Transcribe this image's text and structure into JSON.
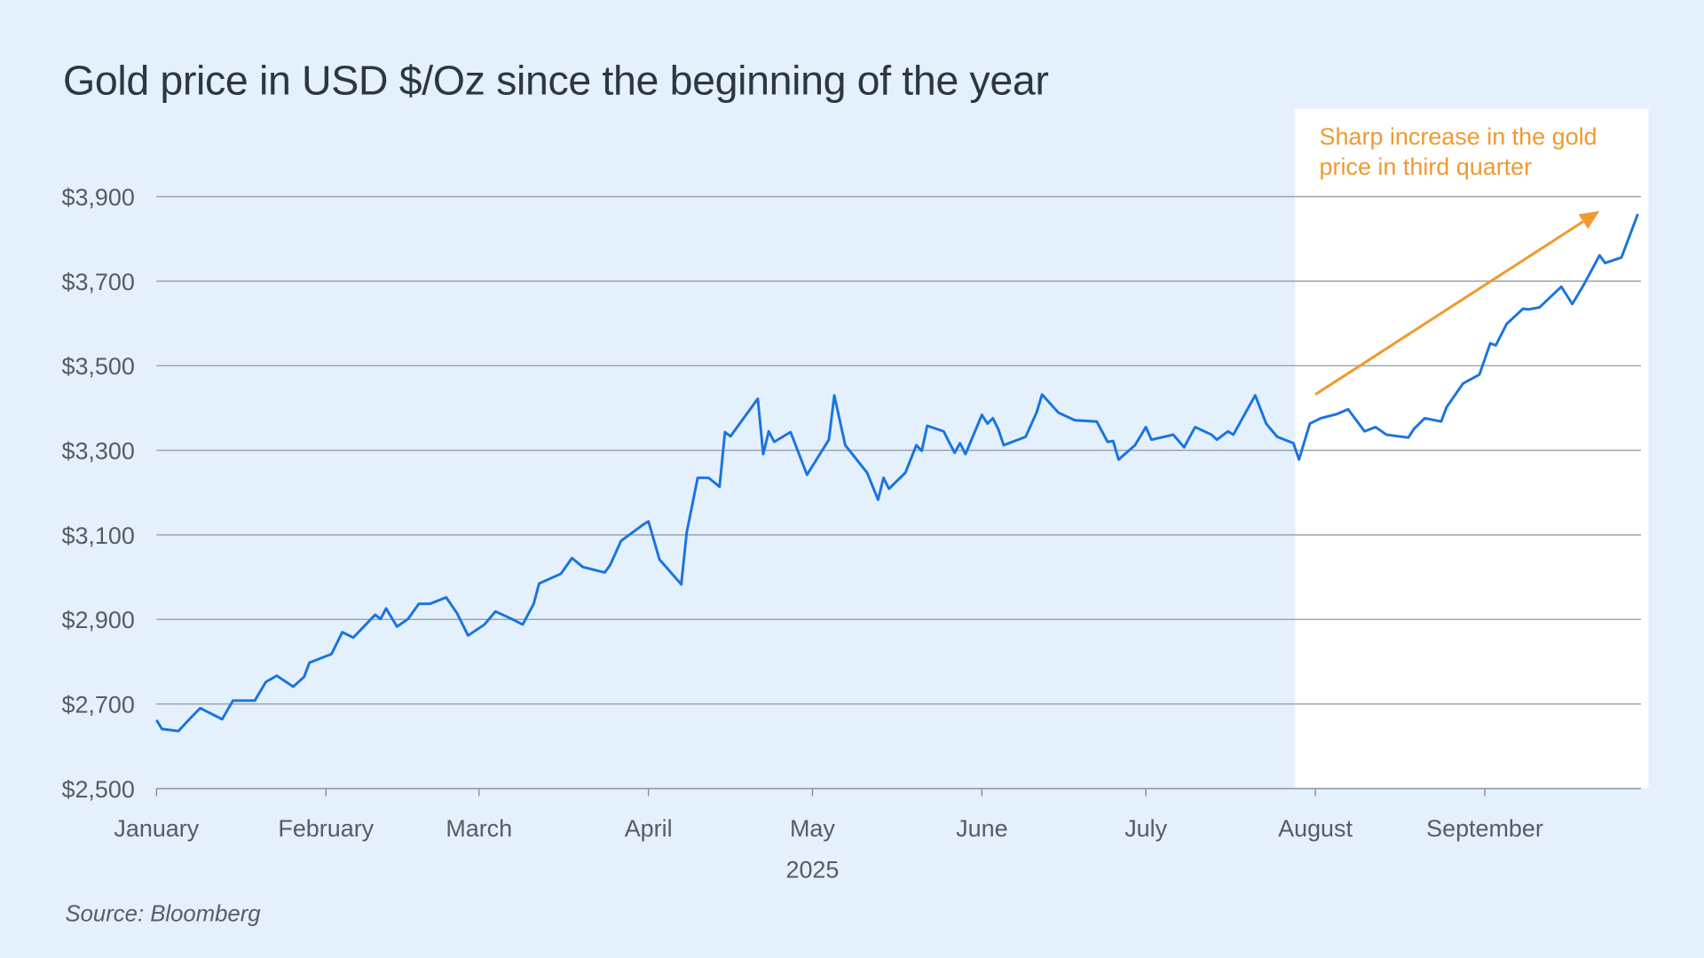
{
  "chart_data": {
    "type": "line",
    "title": "Gold price in USD $/Oz since the beginning of the year",
    "xlabel": "2025",
    "ylabel": "",
    "source": "Source: Bloomberg",
    "ylim": [
      2500,
      3900
    ],
    "xlim_day_of_year": [
      0,
      272
    ],
    "y_ticks": [
      2500,
      2700,
      2900,
      3100,
      3300,
      3500,
      3700,
      3900
    ],
    "y_tick_labels": [
      "$2,500",
      "$2,700",
      "$2,900",
      "$3,100",
      "$3,300",
      "$3,500",
      "$3,700",
      "$3,900"
    ],
    "x_ticks_day": [
      0,
      31,
      59,
      90,
      120,
      151,
      181,
      212,
      243
    ],
    "x_tick_labels": [
      "January",
      "February",
      "March",
      "April",
      "May",
      "June",
      "July",
      "August",
      "September"
    ],
    "grid": "horizontal",
    "series": [
      {
        "name": "Gold price",
        "color": "#1a73e0",
        "x_day": [
          0,
          1,
          4,
          6,
          8,
          12,
          14,
          18,
          20,
          22,
          25,
          27,
          28,
          32,
          34,
          36,
          40,
          41,
          42,
          44,
          46,
          48,
          50,
          53,
          55,
          57,
          60,
          62,
          65,
          67,
          69,
          70,
          74,
          76,
          78,
          82,
          83,
          85,
          89,
          90,
          92,
          96,
          97,
          99,
          101,
          103,
          104,
          105,
          110,
          111,
          112,
          113,
          116,
          119,
          123,
          124,
          126,
          130,
          132,
          133,
          134,
          137,
          139,
          140,
          141,
          144,
          146,
          147,
          148,
          151,
          152,
          153,
          154,
          155,
          159,
          161,
          162,
          165,
          168,
          172,
          174,
          175,
          176,
          179,
          181,
          182,
          186,
          188,
          190,
          193,
          194,
          196,
          197,
          201,
          203,
          205,
          208,
          209,
          211,
          213,
          216,
          218,
          221,
          223,
          225,
          229,
          230,
          232,
          235,
          236,
          239,
          242,
          244,
          245,
          247,
          250,
          251,
          253,
          257,
          259,
          261,
          264,
          265,
          268,
          271
        ],
        "values": [
          2662,
          2641,
          2636,
          2664,
          2690,
          2664,
          2708,
          2708,
          2752,
          2767,
          2741,
          2764,
          2798,
          2818,
          2870,
          2857,
          2911,
          2901,
          2926,
          2883,
          2901,
          2937,
          2937,
          2952,
          2914,
          2862,
          2888,
          2919,
          2901,
          2888,
          2937,
          2985,
          3008,
          3045,
          3024,
          3011,
          3029,
          3086,
          3124,
          3132,
          3042,
          2983,
          3106,
          3235,
          3235,
          3214,
          3343,
          3333,
          3422,
          3291,
          3345,
          3320,
          3343,
          3242,
          3325,
          3430,
          3312,
          3247,
          3183,
          3235,
          3209,
          3247,
          3312,
          3299,
          3358,
          3345,
          3294,
          3317,
          3291,
          3384,
          3363,
          3376,
          3350,
          3312,
          3332,
          3389,
          3432,
          3389,
          3371,
          3368,
          3320,
          3322,
          3278,
          3312,
          3355,
          3325,
          3337,
          3307,
          3355,
          3337,
          3325,
          3345,
          3337,
          3430,
          3363,
          3332,
          3317,
          3278,
          3363,
          3376,
          3386,
          3397,
          3345,
          3355,
          3337,
          3330,
          3350,
          3376,
          3368,
          3402,
          3458,
          3479,
          3553,
          3548,
          3599,
          3635,
          3633,
          3638,
          3687,
          3646,
          3689,
          3761,
          3743,
          3756,
          3859
        ]
      }
    ],
    "highlight": {
      "from_day": 210.5,
      "to_day": 272,
      "color": "#ffffff"
    },
    "annotation": {
      "text": "Sharp increase in the gold price in third quarter",
      "color": "#ef9a2f",
      "arrow_from": [
        212,
        3432
      ],
      "arrow_to": [
        264,
        3866
      ]
    }
  }
}
